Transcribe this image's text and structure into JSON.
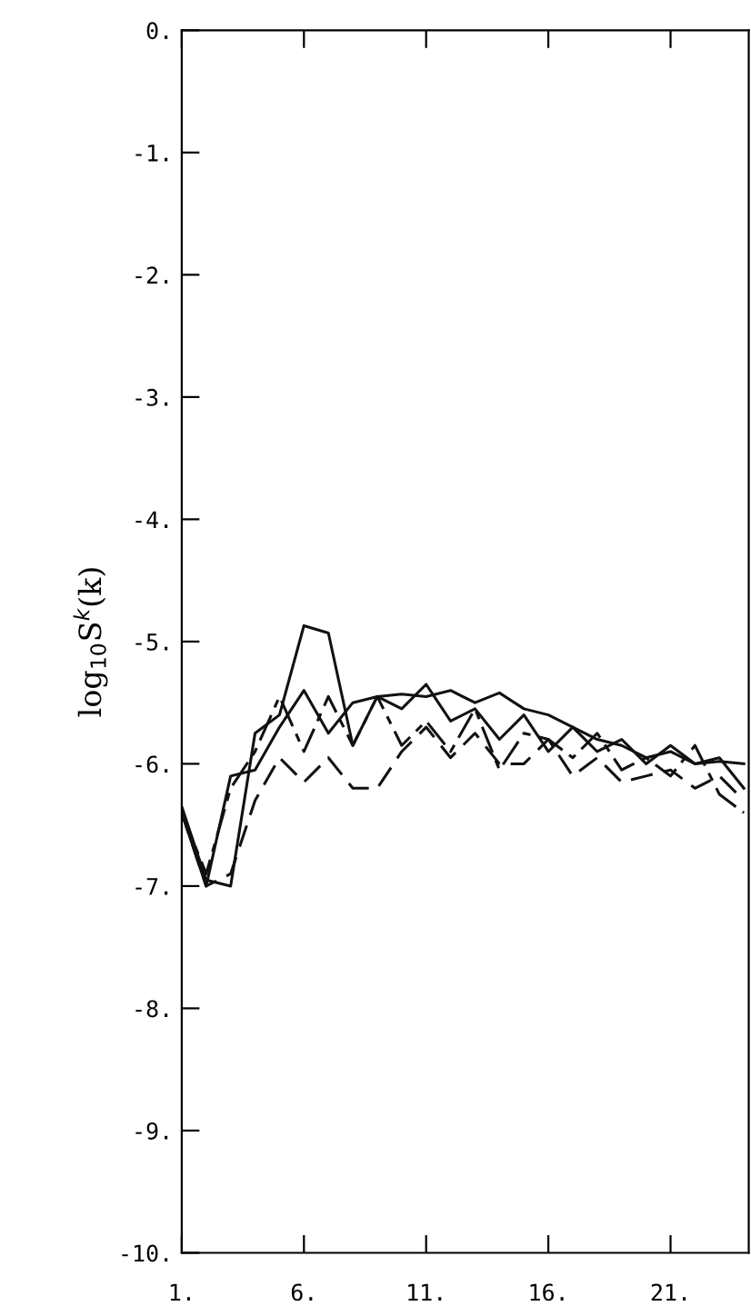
{
  "chart_data": {
    "type": "line",
    "ylabel": "log$_{10}$S$^{k}$(k)",
    "x": [
      1,
      2,
      3,
      4,
      5,
      6,
      7,
      8,
      9,
      10,
      11,
      12,
      13,
      14,
      15,
      16,
      17,
      18,
      19,
      20,
      21,
      22,
      23,
      24
    ],
    "series": [
      {
        "color": "#111111",
        "line_style": "solid",
        "values": [
          -6.35,
          -6.95,
          -7.0,
          -5.75,
          -5.6,
          -4.87,
          -4.93,
          -5.85,
          -5.45,
          -5.43,
          -5.45,
          -5.4,
          -5.5,
          -5.42,
          -5.55,
          -5.6,
          -5.7,
          -5.8,
          -5.85,
          -5.95,
          -5.9,
          -6.0,
          -5.98,
          -6.0
        ]
      },
      {
        "color": "#111111",
        "line_style": "solid",
        "values": [
          -6.4,
          -7.0,
          -6.1,
          -6.05,
          -5.7,
          -5.4,
          -5.75,
          -5.5,
          -5.45,
          -5.55,
          -5.35,
          -5.65,
          -5.55,
          -5.8,
          -5.6,
          -5.9,
          -5.7,
          -5.9,
          -5.8,
          -6.0,
          -5.85,
          -6.0,
          -5.95,
          -6.2
        ]
      },
      {
        "color": "#111111",
        "line_style": "dashdot",
        "values": [
          -6.4,
          -6.9,
          -6.2,
          -5.9,
          -5.45,
          -5.9,
          -5.45,
          -5.85,
          -5.45,
          -5.85,
          -5.65,
          -5.9,
          -5.55,
          -6.05,
          -5.75,
          -5.8,
          -5.95,
          -5.75,
          -6.05,
          -5.95,
          -6.1,
          -5.85,
          -6.25,
          -6.4
        ]
      },
      {
        "color": "#111111",
        "line_style": "dashed",
        "values": [
          -6.4,
          -7.0,
          -6.9,
          -6.3,
          -5.95,
          -6.15,
          -5.95,
          -6.2,
          -6.2,
          -5.9,
          -5.7,
          -5.95,
          -5.75,
          -6.0,
          -6.0,
          -5.8,
          -6.1,
          -5.95,
          -6.15,
          -6.1,
          -6.05,
          -6.2,
          -6.1,
          -6.3
        ]
      }
    ],
    "xlim": [
      1,
      24.2
    ],
    "ylim": [
      -10,
      0
    ],
    "xticks": [
      {
        "value": 1,
        "label": "1."
      },
      {
        "value": 6,
        "label": "6."
      },
      {
        "value": 11,
        "label": "11."
      },
      {
        "value": 16,
        "label": "16."
      },
      {
        "value": 21,
        "label": "21."
      }
    ],
    "yticks": [
      {
        "value": 0,
        "label": "0."
      },
      {
        "value": -1,
        "label": "-1."
      },
      {
        "value": -2,
        "label": "-2."
      },
      {
        "value": -3,
        "label": "-3."
      },
      {
        "value": -4,
        "label": "-4."
      },
      {
        "value": -5,
        "label": "-5."
      },
      {
        "value": -6,
        "label": "-6."
      },
      {
        "value": -7,
        "label": "-7."
      },
      {
        "value": -8,
        "label": "-8."
      },
      {
        "value": -9,
        "label": "-9."
      },
      {
        "value": -10,
        "label": "-10."
      }
    ],
    "grid": false,
    "legend": false,
    "marker": "none"
  }
}
